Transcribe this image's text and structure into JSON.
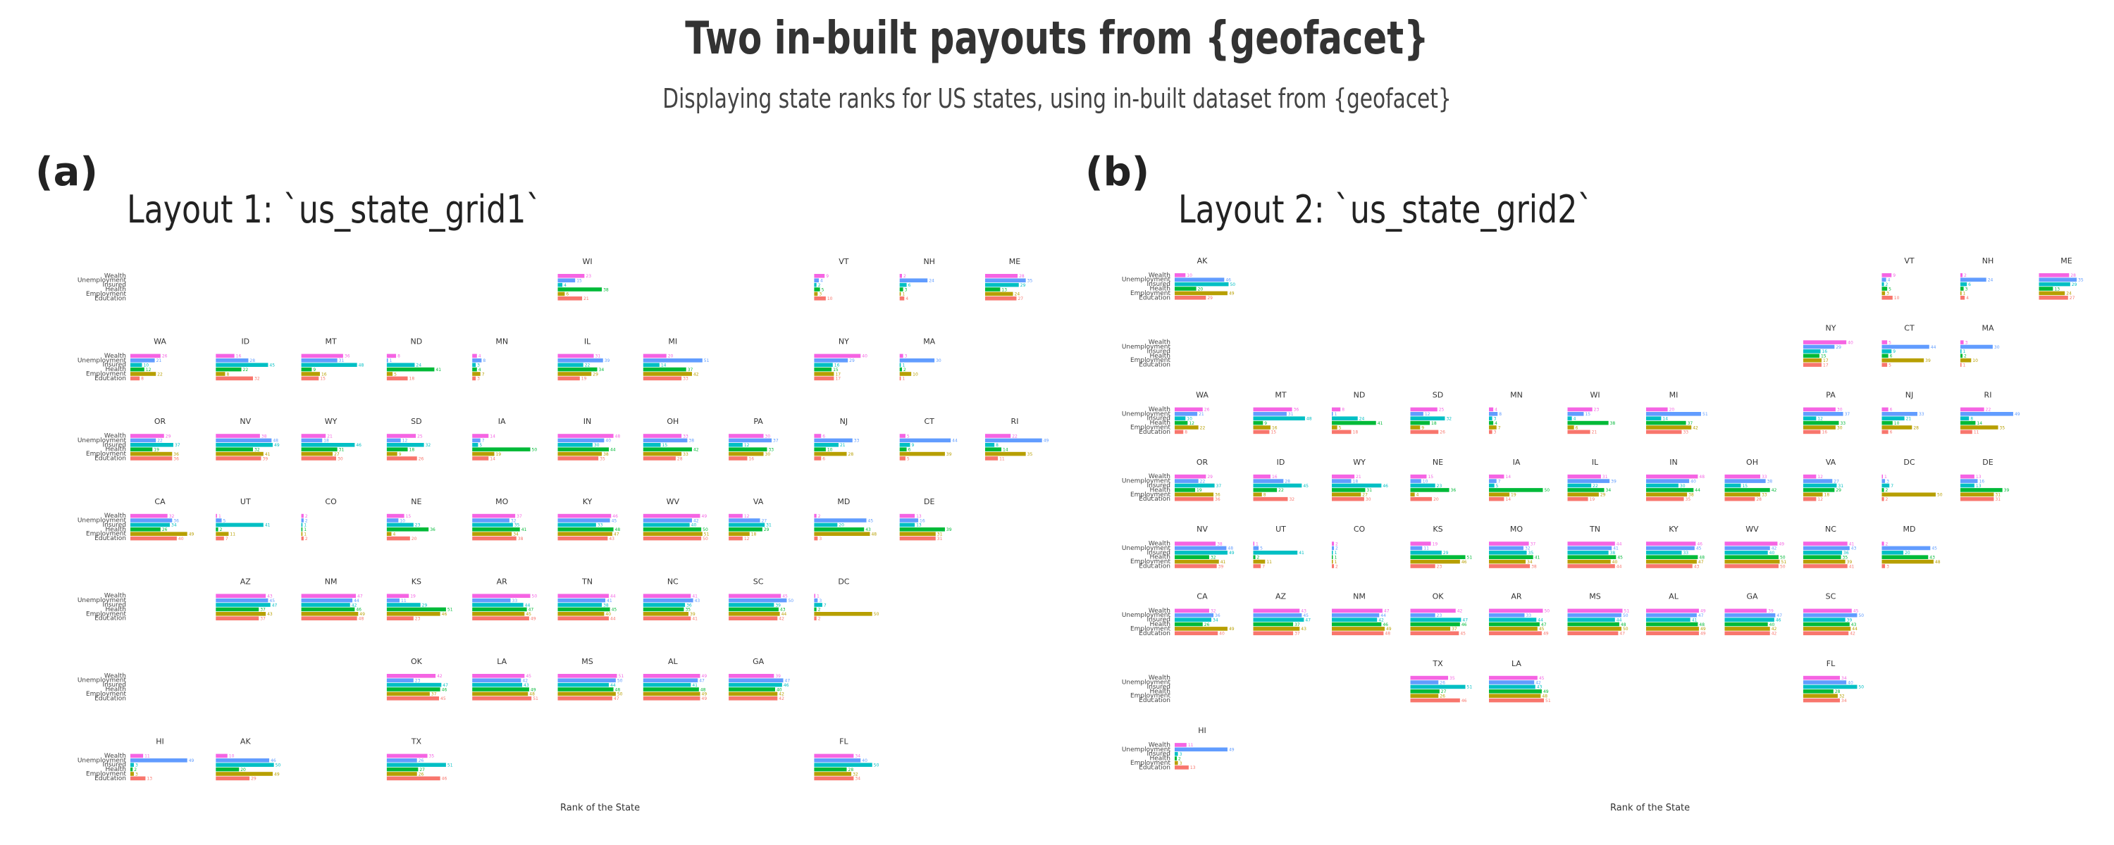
{
  "title": "Two in-built payouts from {geofacet}",
  "subtitle": "Displaying state ranks for US states, using in-built dataset from {geofacet}",
  "colors": {
    "Education": "#F8766D",
    "Employment": "#B79F00",
    "Health": "#00BA38",
    "Insured": "#00BFC4",
    "Unemployment": "#619CFF",
    "Wealth": "#F564E3"
  },
  "chart_data": [
    {
      "type": "bar",
      "tag": "(a)",
      "title": "Layout 1: `us_state_grid1`",
      "xlabel": "Rank of the State",
      "ylabel": "",
      "variables": [
        "Wealth",
        "Unemployment",
        "Insured",
        "Health",
        "Employment",
        "Education"
      ],
      "xlim": [
        0,
        51
      ],
      "panels": [
        {
          "state": "WI",
          "values": [
            23,
            15,
            4,
            38,
            6,
            21
          ]
        },
        {
          "state": "VT",
          "values": [
            9,
            4,
            2,
            5,
            3,
            10
          ]
        },
        {
          "state": "NH",
          "values": [
            2,
            24,
            6,
            3,
            1,
            4
          ]
        },
        {
          "state": "ME",
          "values": [
            28,
            35,
            29,
            13,
            24,
            27
          ]
        },
        {
          "state": "WA",
          "values": [
            26,
            21,
            10,
            12,
            22,
            8
          ]
        },
        {
          "state": "ID",
          "values": [
            16,
            28,
            45,
            22,
            8,
            32
          ]
        },
        {
          "state": "MT",
          "values": [
            36,
            31,
            48,
            9,
            16,
            15
          ]
        },
        {
          "state": "ND",
          "values": [
            8,
            1,
            24,
            41,
            5,
            18
          ]
        },
        {
          "state": "MN",
          "values": [
            4,
            8,
            3,
            4,
            7,
            3
          ]
        },
        {
          "state": "IL",
          "values": [
            31,
            39,
            22,
            34,
            29,
            19
          ]
        },
        {
          "state": "MI",
          "values": [
            20,
            51,
            14,
            37,
            42,
            33
          ]
        },
        {
          "state": "NY",
          "values": [
            40,
            29,
            16,
            15,
            17,
            17
          ]
        },
        {
          "state": "MA",
          "values": [
            3,
            30,
            1,
            2,
            10,
            1
          ]
        },
        {
          "state": "OR",
          "values": [
            29,
            22,
            37,
            19,
            36,
            36
          ]
        },
        {
          "state": "NV",
          "values": [
            38,
            48,
            49,
            32,
            41,
            39
          ]
        },
        {
          "state": "WY",
          "values": [
            21,
            18,
            46,
            31,
            27,
            30
          ]
        },
        {
          "state": "SD",
          "values": [
            25,
            12,
            32,
            18,
            9,
            26
          ]
        },
        {
          "state": "IA",
          "values": [
            14,
            7,
            5,
            50,
            19,
            14
          ]
        },
        {
          "state": "IN",
          "values": [
            48,
            40,
            30,
            44,
            38,
            35
          ]
        },
        {
          "state": "OH",
          "values": [
            33,
            38,
            15,
            42,
            33,
            28
          ]
        },
        {
          "state": "PA",
          "values": [
            30,
            37,
            12,
            33,
            30,
            16
          ]
        },
        {
          "state": "NJ",
          "values": [
            6,
            33,
            21,
            10,
            28,
            6
          ]
        },
        {
          "state": "CT",
          "values": [
            5,
            44,
            9,
            6,
            39,
            5
          ]
        },
        {
          "state": "RI",
          "values": [
            22,
            49,
            8,
            14,
            35,
            11
          ]
        },
        {
          "state": "CA",
          "values": [
            32,
            36,
            34,
            26,
            49,
            40
          ]
        },
        {
          "state": "UT",
          "values": [
            1,
            5,
            41,
            2,
            11,
            7
          ]
        },
        {
          "state": "CO",
          "values": [
            2,
            2,
            1,
            1,
            1,
            2
          ]
        },
        {
          "state": "NE",
          "values": [
            15,
            10,
            23,
            36,
            4,
            20
          ]
        },
        {
          "state": "MO",
          "values": [
            37,
            32,
            35,
            41,
            34,
            38
          ]
        },
        {
          "state": "KY",
          "values": [
            46,
            45,
            33,
            48,
            47,
            43
          ]
        },
        {
          "state": "WV",
          "values": [
            49,
            42,
            40,
            50,
            51,
            50
          ]
        },
        {
          "state": "VA",
          "values": [
            12,
            27,
            31,
            29,
            18,
            12
          ]
        },
        {
          "state": "MD",
          "values": [
            2,
            45,
            20,
            43,
            48,
            3
          ]
        },
        {
          "state": "DE",
          "values": [
            13,
            16,
            13,
            39,
            31,
            31
          ]
        },
        {
          "state": "AZ",
          "values": [
            43,
            45,
            47,
            37,
            43,
            37
          ]
        },
        {
          "state": "NM",
          "values": [
            47,
            44,
            42,
            46,
            49,
            48
          ]
        },
        {
          "state": "KS",
          "values": [
            19,
            11,
            29,
            51,
            46,
            23
          ]
        },
        {
          "state": "AR",
          "values": [
            50,
            33,
            44,
            47,
            45,
            49
          ]
        },
        {
          "state": "TN",
          "values": [
            44,
            41,
            38,
            45,
            40,
            44
          ]
        },
        {
          "state": "NC",
          "values": [
            41,
            43,
            36,
            35,
            39,
            41
          ]
        },
        {
          "state": "SC",
          "values": [
            45,
            50,
            39,
            43,
            44,
            42
          ]
        },
        {
          "state": "DC",
          "values": [
            1,
            3,
            7,
            2,
            50,
            2
          ]
        },
        {
          "state": "OK",
          "values": [
            42,
            23,
            47,
            46,
            37,
            45
          ]
        },
        {
          "state": "LA",
          "values": [
            45,
            42,
            43,
            49,
            48,
            51
          ]
        },
        {
          "state": "MS",
          "values": [
            51,
            50,
            44,
            48,
            50,
            47
          ]
        },
        {
          "state": "AL",
          "values": [
            49,
            47,
            41,
            48,
            49,
            49
          ]
        },
        {
          "state": "GA",
          "values": [
            39,
            47,
            46,
            40,
            42,
            42
          ]
        },
        {
          "state": "HI",
          "values": [
            11,
            49,
            3,
            2,
            3,
            13
          ]
        },
        {
          "state": "AK",
          "values": [
            10,
            46,
            50,
            20,
            49,
            29
          ]
        },
        {
          "state": "TX",
          "values": [
            35,
            26,
            51,
            27,
            26,
            46
          ]
        },
        {
          "state": "FL",
          "values": [
            34,
            40,
            50,
            28,
            32,
            34
          ]
        }
      ]
    },
    {
      "type": "bar",
      "tag": "(b)",
      "title": "Layout 2: `us_state_grid2`",
      "xlabel": "Rank of the State",
      "ylabel": "",
      "variables": [
        "Wealth",
        "Unemployment",
        "Insured",
        "Health",
        "Employment",
        "Education"
      ],
      "xlim": [
        0,
        51
      ],
      "panels": [
        {
          "state": "AK"
        },
        {
          "state": "VT"
        },
        {
          "state": "NH"
        },
        {
          "state": "ME"
        },
        {
          "state": "NY"
        },
        {
          "state": "CT"
        },
        {
          "state": "MA"
        },
        {
          "state": "WA"
        },
        {
          "state": "MT"
        },
        {
          "state": "ND"
        },
        {
          "state": "SD"
        },
        {
          "state": "MN"
        },
        {
          "state": "WI"
        },
        {
          "state": "MI"
        },
        {
          "state": "PA"
        },
        {
          "state": "NJ"
        },
        {
          "state": "RI"
        },
        {
          "state": "OR"
        },
        {
          "state": "ID"
        },
        {
          "state": "WY"
        },
        {
          "state": "NE"
        },
        {
          "state": "IA"
        },
        {
          "state": "IL"
        },
        {
          "state": "IN"
        },
        {
          "state": "OH"
        },
        {
          "state": "VA"
        },
        {
          "state": "DC"
        },
        {
          "state": "DE"
        },
        {
          "state": "NV"
        },
        {
          "state": "UT"
        },
        {
          "state": "CO"
        },
        {
          "state": "KS"
        },
        {
          "state": "MO"
        },
        {
          "state": "TN"
        },
        {
          "state": "KY"
        },
        {
          "state": "WV"
        },
        {
          "state": "NC"
        },
        {
          "state": "MD"
        },
        {
          "state": "CA"
        },
        {
          "state": "AZ"
        },
        {
          "state": "NM"
        },
        {
          "state": "OK"
        },
        {
          "state": "AR"
        },
        {
          "state": "MS"
        },
        {
          "state": "AL"
        },
        {
          "state": "GA"
        },
        {
          "state": "SC"
        },
        {
          "state": "TX"
        },
        {
          "state": "LA"
        },
        {
          "state": "FL"
        },
        {
          "state": "HI"
        }
      ]
    }
  ]
}
